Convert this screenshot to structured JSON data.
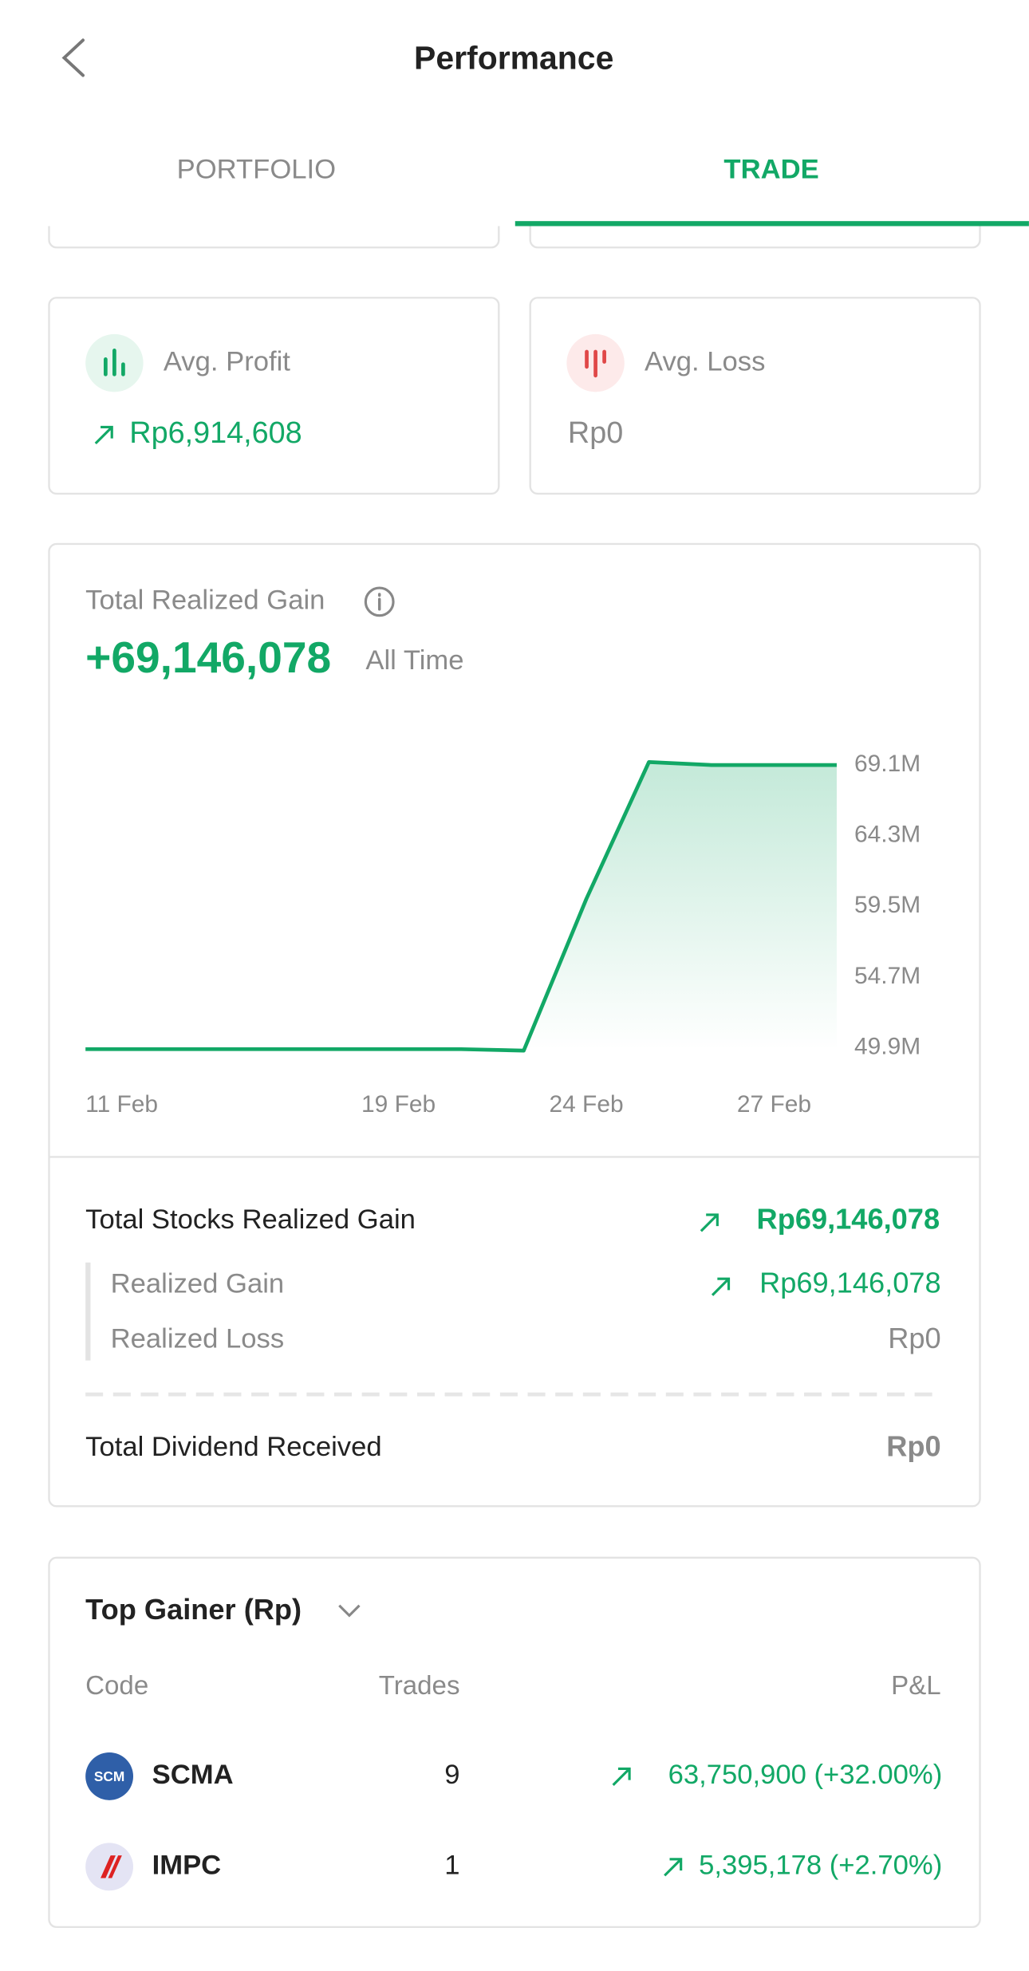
{
  "header": {
    "title": "Performance"
  },
  "tabs": [
    "PORTFOLIO",
    "TRADE"
  ],
  "summary": [
    {
      "label": "Avg. Profit",
      "value": "Rp6,914,608"
    },
    {
      "label": "Avg. Loss",
      "value": "Rp0"
    }
  ],
  "realized": {
    "title": "Total Realized Gain",
    "total": "+69,146,078",
    "period": "All Time",
    "chart": {
      "type": "line",
      "color": "#12a866",
      "categories": [
        "11 Feb",
        null,
        null,
        null,
        null,
        "19 Feb",
        null,
        null,
        "24 Feb",
        null,
        null,
        "27 Feb",
        null
      ],
      "values": [
        49800000,
        49800000,
        49800000,
        49800000,
        49800000,
        49800000,
        49800000,
        49700000,
        60000000,
        69300000,
        69100000,
        69100000,
        69100000
      ],
      "ylim": [
        49900000,
        69100000
      ],
      "yticks": [
        {
          "value": 69100000,
          "label": "69.1M"
        },
        {
          "value": 64300000,
          "label": "64.3M"
        },
        {
          "value": 59500000,
          "label": "59.5M"
        },
        {
          "value": 54700000,
          "label": "54.7M"
        },
        {
          "value": 49900000,
          "label": "49.9M"
        }
      ]
    },
    "breakdown": {
      "total_stocks": {
        "label": "Total Stocks Realized Gain",
        "value": "Rp69,146,078"
      },
      "gain": {
        "label": "Realized Gain",
        "value": "Rp69,146,078"
      },
      "loss": {
        "label": "Realized Loss",
        "value": "Rp0"
      },
      "dividend": {
        "label": "Total Dividend Received",
        "value": "Rp0"
      }
    }
  },
  "top_gainer": {
    "title": "Top Gainer (Rp)",
    "columns": [
      "Code",
      "Trades",
      "P&L"
    ],
    "rows": [
      {
        "logo": "SCM",
        "code": "SCMA",
        "trades": "9",
        "pnl": "63,750,900 (+32.00%)"
      },
      {
        "code": "IMPC",
        "trades": "1",
        "pnl": "5,395,178 (+2.70%)"
      }
    ]
  }
}
